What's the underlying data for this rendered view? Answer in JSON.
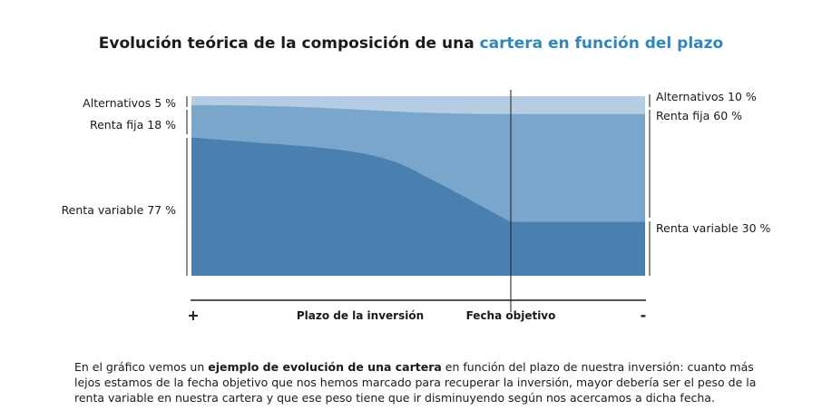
{
  "title": {
    "part1": "Evolución teórica de la composición de una ",
    "highlight": "cartera en función del plazo"
  },
  "colors": {
    "accent": "#2f86b8",
    "renta_variable": "#4a80b0",
    "renta_fija": "#7aa6cb",
    "alternativos": "#b5cde3"
  },
  "chart_data": {
    "type": "area",
    "stacked": true,
    "percent": true,
    "series": [
      {
        "name": "Renta variable",
        "start": 77,
        "end": 30,
        "start_label": "Renta variable 77 %",
        "end_label": "Renta variable 30 %"
      },
      {
        "name": "Renta fija",
        "start": 18,
        "end": 60,
        "start_label": "Renta fija 18 %",
        "end_label": "Renta fija 60 %"
      },
      {
        "name": "Alternativos",
        "start": 5,
        "end": 10,
        "start_label": "Alternativos 5 %",
        "end_label": "Alternativos 10 %"
      }
    ],
    "x_axis": {
      "left_sign": "+",
      "label": "Plazo de la inversión",
      "target_label": "Fecha objetivo",
      "right_sign": "-"
    }
  },
  "description": {
    "text1": "En el gráfico vemos un ",
    "bold": "ejemplo de evolución de una cartera",
    "text2": " en función del plazo de nuestra inversión: cuanto más lejos estamos de la fecha objetivo que nos hemos marcado para recuperar la inversión, mayor debería ser el peso de la renta variable en nuestra cartera y que ese peso tiene que ir disminuyendo según nos acercamos a dicha fecha."
  }
}
